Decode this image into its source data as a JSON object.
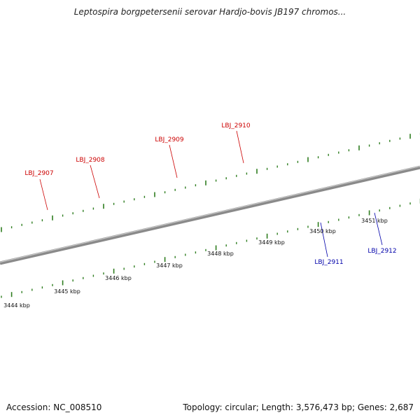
{
  "title": "Leptospira borgpetersenii serovar Hardjo-bovis JB197 chromos...",
  "footer": {
    "accession": "Accession: NC_008510",
    "summary": "Topology: circular; Length: 3,576,473 bp; Genes: 2,687"
  },
  "colors": {
    "backbone": "#8a8a8a",
    "tick": "#2e7d1f",
    "forward_gene": "#ee1111",
    "reverse_gene": "#1515ee",
    "pink_gene": "#ee2a9c",
    "light_blue_gene": "#5588bb",
    "dark_blue_gene": "#4a3e8c",
    "grey_gene": "#bdbdbd",
    "forward_label": "#cc0000",
    "reverse_label": "#0000aa"
  },
  "axis_labels": [
    "3444 kbp",
    "3445 kbp",
    "3446 kbp",
    "3447 kbp",
    "3448 kbp",
    "3449 kbp",
    "3450 kbp",
    "3451 kbp"
  ],
  "gene_labels": {
    "forward": [
      "LBJ_2907",
      "LBJ_2908",
      "LBJ_2909",
      "LBJ_2910"
    ],
    "reverse": [
      "LBJ_2911",
      "LBJ_2912"
    ]
  }
}
